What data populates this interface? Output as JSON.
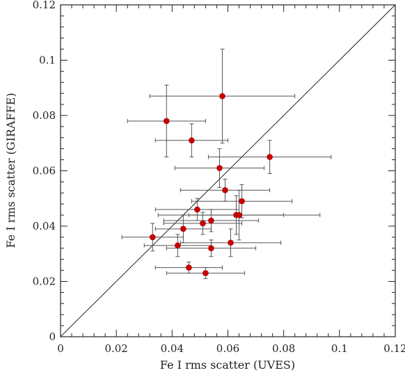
{
  "chart_data": {
    "type": "scatter",
    "title": "",
    "xlabel": "Fe I rms scatter (UVES)",
    "ylabel": "Fe I rms scatter (GIRAFFE)",
    "xlim": [
      0,
      0.12
    ],
    "ylim": [
      0,
      0.12
    ],
    "xticks": [
      "0",
      "0.02",
      "0.04",
      "0.06",
      "0.08",
      "0.1",
      "0.12"
    ],
    "yticks": [
      "0",
      "0.02",
      "0.04",
      "0.06",
      "0.08",
      "0.1",
      "0.12"
    ],
    "grid": false,
    "reference_line": "y = x",
    "colors": {
      "points": "#cc0000",
      "errorbars": "#555555",
      "axes": "#222222",
      "line": "#222222"
    },
    "points": [
      {
        "x": 0.058,
        "y": 0.087,
        "xerr": 0.026,
        "yerr": 0.017
      },
      {
        "x": 0.038,
        "y": 0.078,
        "xerr": 0.014,
        "yerr": 0.013
      },
      {
        "x": 0.047,
        "y": 0.071,
        "xerr": 0.013,
        "yerr": 0.006
      },
      {
        "x": 0.075,
        "y": 0.065,
        "xerr": 0.022,
        "yerr": 0.006
      },
      {
        "x": 0.057,
        "y": 0.061,
        "xerr": 0.016,
        "yerr": 0.007
      },
      {
        "x": 0.059,
        "y": 0.053,
        "xerr": 0.016,
        "yerr": 0.004
      },
      {
        "x": 0.065,
        "y": 0.049,
        "xerr": 0.018,
        "yerr": 0.006
      },
      {
        "x": 0.049,
        "y": 0.046,
        "xerr": 0.015,
        "yerr": 0.004
      },
      {
        "x": 0.063,
        "y": 0.044,
        "xerr": 0.017,
        "yerr": 0.007
      },
      {
        "x": 0.064,
        "y": 0.044,
        "xerr": 0.029,
        "yerr": 0.009
      },
      {
        "x": 0.054,
        "y": 0.042,
        "xerr": 0.017,
        "yerr": 0.004
      },
      {
        "x": 0.051,
        "y": 0.041,
        "xerr": 0.014,
        "yerr": 0.004
      },
      {
        "x": 0.044,
        "y": 0.039,
        "xerr": 0.01,
        "yerr": 0.005
      },
      {
        "x": 0.033,
        "y": 0.036,
        "xerr": 0.011,
        "yerr": 0.005
      },
      {
        "x": 0.061,
        "y": 0.034,
        "xerr": 0.018,
        "yerr": 0.005
      },
      {
        "x": 0.042,
        "y": 0.033,
        "xerr": 0.012,
        "yerr": 0.004
      },
      {
        "x": 0.054,
        "y": 0.032,
        "xerr": 0.016,
        "yerr": 0.003
      },
      {
        "x": 0.046,
        "y": 0.025,
        "xerr": 0.012,
        "yerr": 0.002
      },
      {
        "x": 0.052,
        "y": 0.023,
        "xerr": 0.014,
        "yerr": 0.002
      }
    ]
  }
}
